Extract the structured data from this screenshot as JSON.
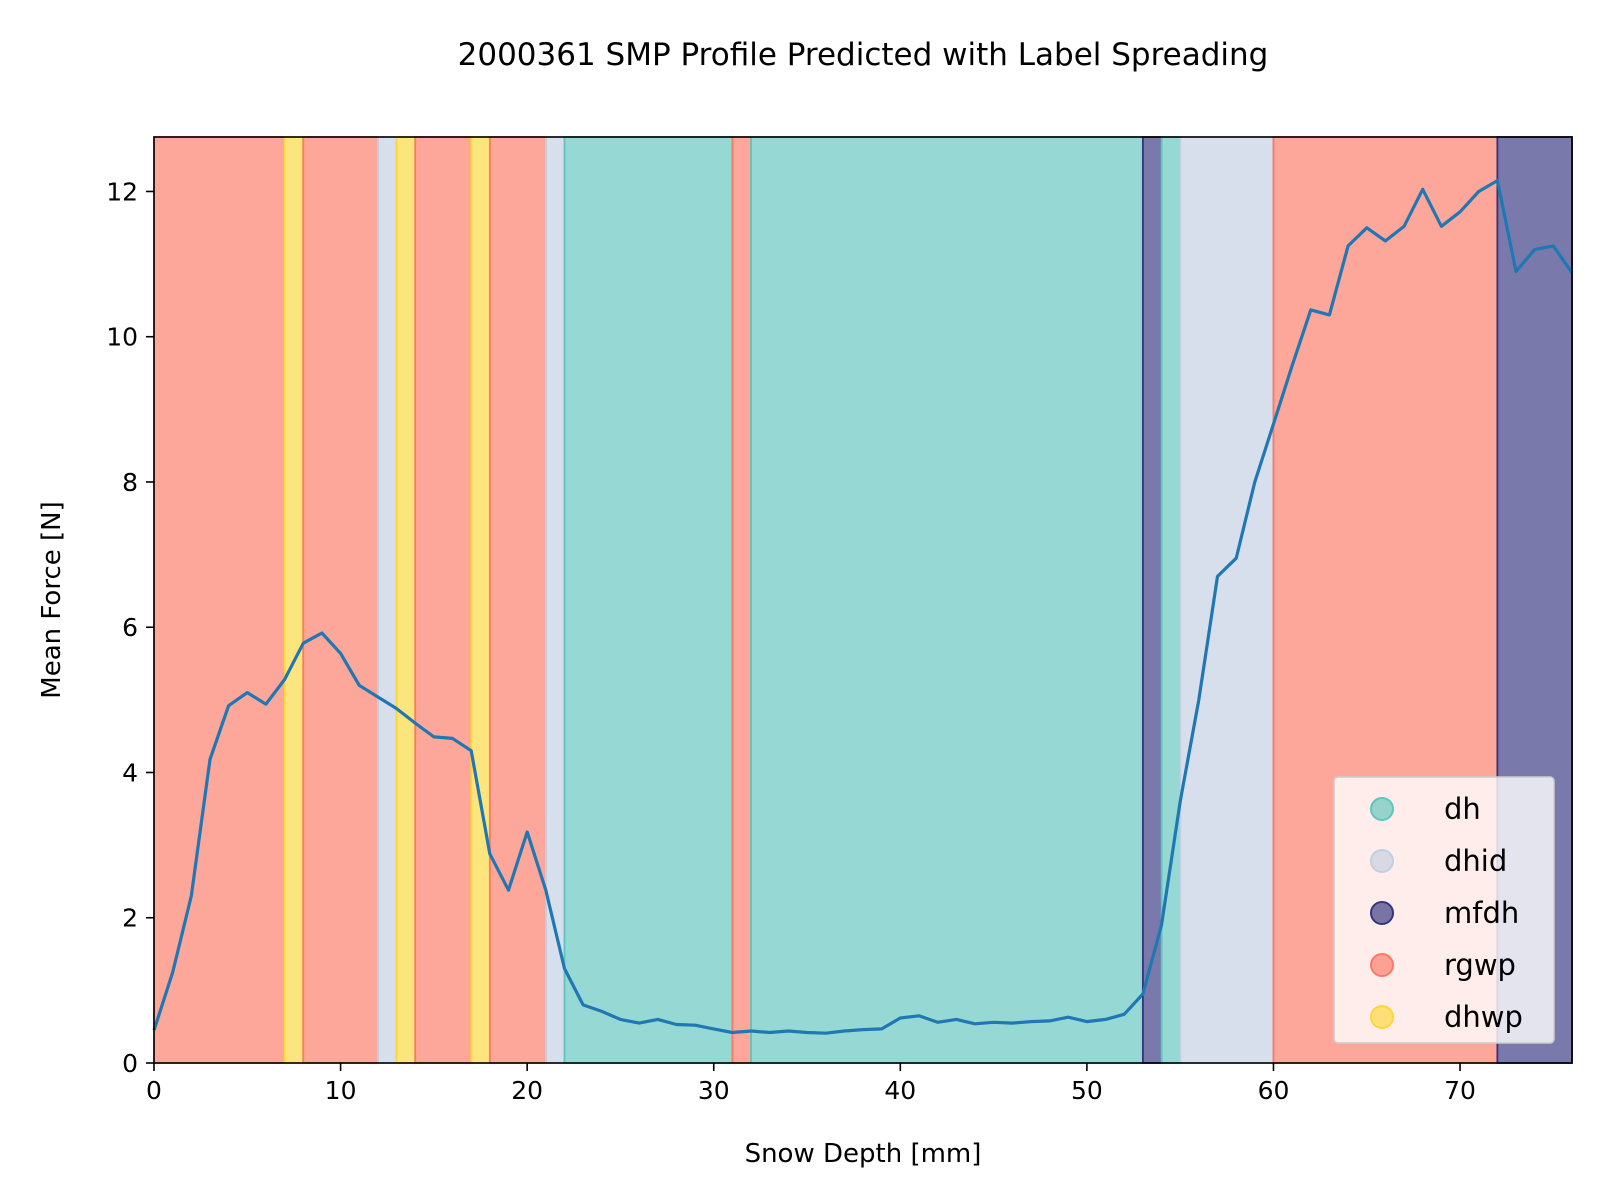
{
  "chart_data": {
    "type": "line",
    "title": "2000361 SMP Profile Predicted with Label Spreading",
    "xlabel": "Snow Depth [mm]",
    "ylabel": "Mean Force [N]",
    "xlim": [
      0,
      76
    ],
    "ylim": [
      0,
      12.75
    ],
    "xticks": [
      0,
      10,
      20,
      30,
      40,
      50,
      60,
      70
    ],
    "yticks": [
      0,
      2,
      4,
      6,
      8,
      10,
      12
    ],
    "grid": false,
    "legend_position": "lower-right",
    "line_color": "#1f77b4",
    "classes": [
      {
        "name": "dh",
        "color": "#5fc5bd"
      },
      {
        "name": "dhid",
        "color": "#c2cfe2"
      },
      {
        "name": "mfdh",
        "color": "#34357f"
      },
      {
        "name": "rgwp",
        "color": "#fa7a66"
      },
      {
        "name": "dhwp",
        "color": "#fcd739"
      }
    ],
    "segments": [
      {
        "start": 0,
        "end": 7,
        "label": "rgwp"
      },
      {
        "start": 7,
        "end": 8,
        "label": "dhwp"
      },
      {
        "start": 8,
        "end": 12,
        "label": "rgwp"
      },
      {
        "start": 12,
        "end": 13,
        "label": "dhid"
      },
      {
        "start": 13,
        "end": 14,
        "label": "dhwp"
      },
      {
        "start": 14,
        "end": 17,
        "label": "rgwp"
      },
      {
        "start": 17,
        "end": 18,
        "label": "dhwp"
      },
      {
        "start": 18,
        "end": 21,
        "label": "rgwp"
      },
      {
        "start": 21,
        "end": 22,
        "label": "dhid"
      },
      {
        "start": 22,
        "end": 31,
        "label": "dh"
      },
      {
        "start": 31,
        "end": 32,
        "label": "rgwp"
      },
      {
        "start": 32,
        "end": 53,
        "label": "dh"
      },
      {
        "start": 53,
        "end": 54,
        "label": "mfdh"
      },
      {
        "start": 54,
        "end": 55,
        "label": "dh"
      },
      {
        "start": 55,
        "end": 60,
        "label": "dhid"
      },
      {
        "start": 60,
        "end": 72,
        "label": "rgwp"
      },
      {
        "start": 72,
        "end": 76,
        "label": "mfdh"
      }
    ],
    "series": [
      {
        "x": [
          0,
          1,
          2,
          3,
          4,
          5,
          6,
          7,
          8,
          9,
          10,
          11,
          12,
          13,
          14,
          15,
          16,
          17,
          18,
          19,
          20,
          21,
          22,
          23,
          24,
          25,
          26,
          27,
          28,
          29,
          30,
          31,
          32,
          33,
          34,
          35,
          36,
          37,
          38,
          39,
          40,
          41,
          42,
          43,
          44,
          45,
          46,
          47,
          48,
          49,
          50,
          51,
          52,
          53,
          54,
          55,
          56,
          57,
          58,
          59,
          60,
          61,
          62,
          63,
          64,
          65,
          66,
          67,
          68,
          69,
          70,
          71,
          72,
          73,
          74,
          75,
          76
        ],
        "values": [
          0.45,
          1.25,
          2.3,
          4.18,
          4.92,
          5.1,
          4.94,
          5.28,
          5.78,
          5.92,
          5.64,
          5.2,
          5.04,
          4.88,
          4.68,
          4.49,
          4.47,
          4.3,
          2.88,
          2.38,
          3.18,
          2.38,
          1.3,
          0.8,
          0.71,
          0.6,
          0.55,
          0.6,
          0.53,
          0.52,
          0.47,
          0.42,
          0.44,
          0.42,
          0.44,
          0.42,
          0.41,
          0.44,
          0.46,
          0.47,
          0.62,
          0.65,
          0.56,
          0.6,
          0.54,
          0.56,
          0.55,
          0.57,
          0.58,
          0.63,
          0.57,
          0.6,
          0.67,
          0.95,
          1.9,
          3.6,
          5.0,
          6.7,
          6.95,
          8.0,
          8.8,
          9.6,
          10.37,
          10.3,
          11.25,
          11.5,
          11.32,
          11.52,
          12.03,
          11.52,
          11.72,
          12.0,
          12.15,
          10.9,
          11.2,
          11.25,
          10.88
        ]
      }
    ]
  }
}
